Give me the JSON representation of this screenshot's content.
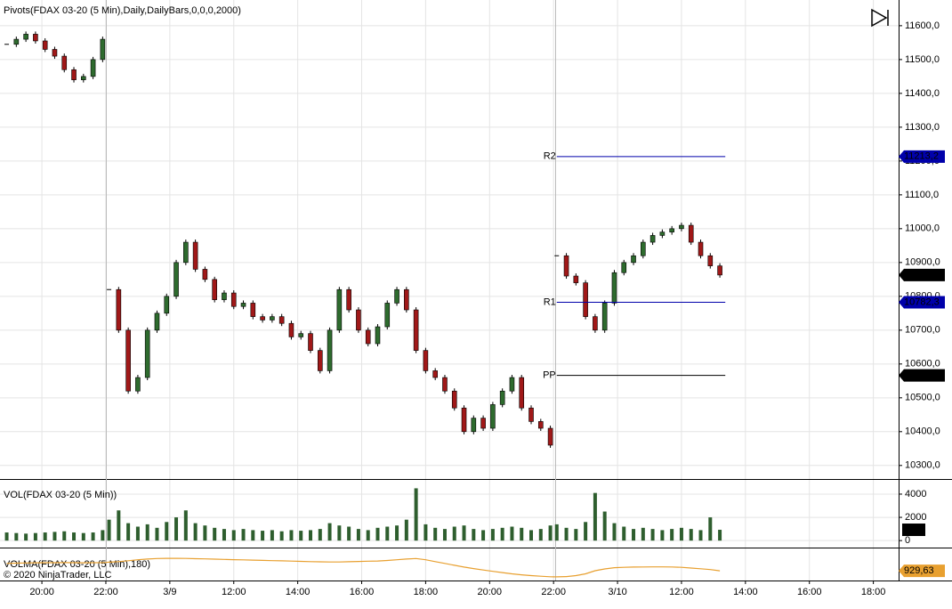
{
  "chart_data": [
    {
      "type": "candlestick",
      "title": "Pivots(FDAX 03-20 (5 Min),Daily,DailyBars,0,0,0,2000)",
      "x": [
        -1.1,
        -0.8,
        -0.5,
        -0.2,
        0.1,
        0.4,
        0.7,
        1.0,
        1.3,
        1.6,
        1.9,
        2.0,
        2.1,
        2.4,
        2.7,
        3.0,
        3.3,
        3.6,
        3.9,
        4.2,
        4.5,
        4.8,
        5.1,
        5.4,
        5.7,
        6.0,
        6.3,
        6.6,
        6.9,
        7.2,
        7.5,
        7.8,
        8.1,
        8.4,
        8.7,
        9.0,
        9.3,
        9.6,
        9.9,
        10.2,
        10.5,
        10.8,
        11.1,
        11.4,
        11.7,
        12.0,
        12.3,
        12.6,
        12.9,
        13.2,
        13.5,
        13.8,
        14.1,
        14.4,
        14.7,
        15.0,
        15.3,
        15.6,
        15.9,
        16.0,
        16.1,
        16.4,
        16.7,
        17.0,
        17.3,
        17.6,
        17.9,
        18.2,
        18.5,
        18.8,
        19.1,
        19.4,
        19.7,
        20.0,
        20.3,
        20.6,
        20.9,
        21.2
      ],
      "values": [
        11545,
        11560,
        11575,
        11555,
        11530,
        11510,
        11470,
        11440,
        11450,
        11500,
        11560,
        null,
        10820,
        10700,
        10520,
        10560,
        10700,
        10750,
        10800,
        10900,
        10960,
        10880,
        10850,
        10790,
        10810,
        10770,
        10780,
        10740,
        10730,
        10740,
        10720,
        10680,
        10690,
        10640,
        10580,
        10700,
        10820,
        10760,
        10700,
        10660,
        10710,
        10780,
        10820,
        10760,
        10640,
        10580,
        10560,
        10520,
        10470,
        10400,
        10440,
        10410,
        10480,
        10520,
        10560,
        10470,
        10430,
        10410,
        10360,
        null,
        10920,
        10860,
        10840,
        10740,
        10700,
        10780,
        10870,
        10900,
        10920,
        10960,
        10980,
        10990,
        11000,
        11010,
        10960,
        10920,
        10890,
        10863
      ],
      "last_value_label": "10863,0",
      "up_color": "#2e6b2e",
      "down_color": "#a01818",
      "xlim": [
        -1.31,
        26.79
      ],
      "xticks": [
        {
          "value": 0,
          "label": "20:00"
        },
        {
          "value": 2,
          "label": "22:00"
        },
        {
          "value": 4,
          "label": "3/9"
        },
        {
          "value": 6,
          "label": "12:00"
        },
        {
          "value": 8,
          "label": "14:00"
        },
        {
          "value": 10,
          "label": "16:00"
        },
        {
          "value": 12,
          "label": "18:00"
        },
        {
          "value": 14,
          "label": "20:00"
        },
        {
          "value": 16,
          "label": "22:00"
        },
        {
          "value": 18,
          "label": "3/10"
        },
        {
          "value": 20,
          "label": "12:00"
        },
        {
          "value": 22,
          "label": "14:00"
        },
        {
          "value": 24,
          "label": "16:00"
        },
        {
          "value": 26,
          "label": "18:00"
        }
      ],
      "ylim": [
        10260,
        11676
      ],
      "yticks": [
        {
          "value": 10300,
          "label": "10300,0"
        },
        {
          "value": 10400,
          "label": "10400,0"
        },
        {
          "value": 10500,
          "label": "10500,0"
        },
        {
          "value": 10600,
          "label": "10600,0"
        },
        {
          "value": 10700,
          "label": "10700,0"
        },
        {
          "value": 10800,
          "label": "10800,0"
        },
        {
          "value": 10900,
          "label": "10900,0"
        },
        {
          "value": 11000,
          "label": "11000,0"
        },
        {
          "value": 11100,
          "label": "11100,0"
        },
        {
          "value": 11200,
          "label": "11200,0"
        },
        {
          "value": 11300,
          "label": "11300,0"
        },
        {
          "value": 11400,
          "label": "11400,0"
        },
        {
          "value": 11500,
          "label": "11500,0"
        },
        {
          "value": 11600,
          "label": "11600,0"
        }
      ],
      "grid": true,
      "pivot_x": [
        16.1,
        21.37
      ],
      "pivots": [
        {
          "label": "R2",
          "value": 11213.2,
          "value_label": "11213,2",
          "color": "#0000aa"
        },
        {
          "label": "R1",
          "value": 10782.3,
          "value_label": "10782,3",
          "color": "#0000aa"
        },
        {
          "label": "PP",
          "value": 10566.2,
          "value_label": "10566,2",
          "color": "#000000"
        }
      ]
    },
    {
      "type": "bar",
      "title": "VOL(FDAX 03-20 (5 Min))",
      "values": [
        700,
        650,
        600,
        650,
        700,
        750,
        800,
        700,
        650,
        700,
        900,
        null,
        1800,
        2600,
        1500,
        1200,
        1400,
        1100,
        1600,
        2000,
        2600,
        1500,
        1300,
        1100,
        1000,
        900,
        1000,
        900,
        850,
        900,
        800,
        900,
        850,
        900,
        1000,
        1500,
        1300,
        1200,
        1000,
        900,
        1100,
        1200,
        1300,
        1800,
        4500,
        1400,
        1100,
        1000,
        1200,
        1300,
        1000,
        900,
        1000,
        1100,
        1200,
        1100,
        900,
        1000,
        1300,
        null,
        1400,
        1100,
        1000,
        1600,
        4100,
        2500,
        1500,
        1200,
        1000,
        1100,
        1000,
        900,
        1000,
        1100,
        1000,
        900,
        2000,
        931
      ],
      "color": "#2e5e2e",
      "ylim": [
        -600,
        5300
      ],
      "yticks": [
        0,
        2000,
        4000
      ],
      "grid": true
    },
    {
      "type": "line",
      "title": "VOLMA(FDAX 03-20 (5 Min),180)",
      "values": [
        990,
        992,
        994,
        995,
        996,
        996,
        997,
        996,
        995,
        996,
        997,
        998,
        1000,
        1005,
        1012,
        1020,
        1026,
        1030,
        1032,
        1032,
        1031,
        1029,
        1027,
        1025,
        1023,
        1021,
        1019,
        1017,
        1015,
        1013,
        1011,
        1009,
        1007,
        1005,
        1003,
        1002,
        1002,
        1004,
        1006,
        1008,
        1010,
        1014,
        1020,
        1026,
        1030,
        1020,
        1005,
        990,
        975,
        960,
        948,
        936,
        925,
        915,
        905,
        897,
        890,
        885,
        881,
        880,
        880,
        882,
        890,
        905,
        930,
        945,
        955,
        958,
        960,
        961,
        962,
        962,
        961,
        958,
        952,
        946,
        940,
        929.63
      ],
      "last_value_label": "929,63",
      "color": "#e8a030",
      "ylim": [
        850,
        1120
      ]
    }
  ],
  "copyright": "© 2020 NinjaTrader, LLC"
}
